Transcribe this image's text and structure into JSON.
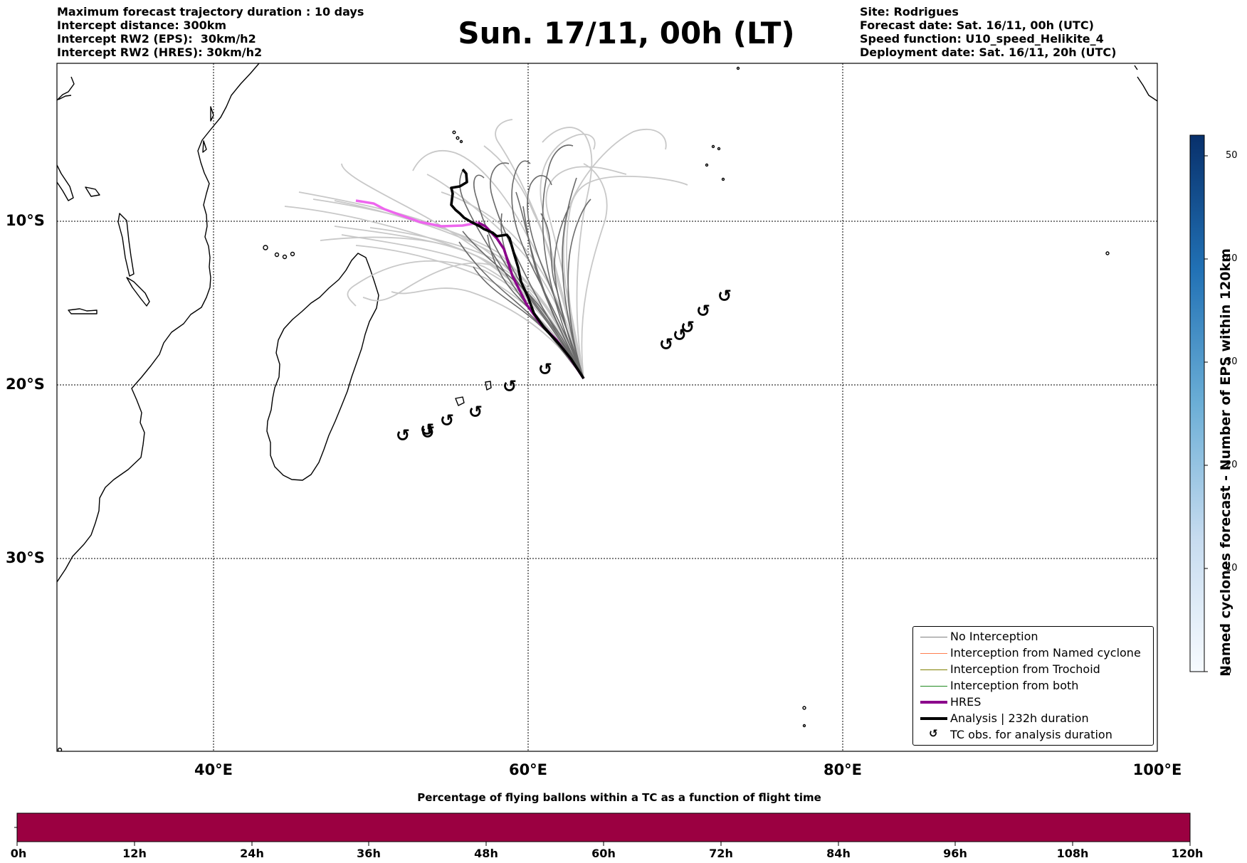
{
  "header_left": [
    "Maximum forecast trajectory duration : 10 days",
    "Intercept distance: 300km",
    "Intercept RW2 (EPS):  30km/h2",
    "Intercept RW2 (HRES): 30km/h2"
  ],
  "title": "Sun. 17/11, 00h (LT)",
  "header_right": [
    "Site: Rodrigues",
    "Forecast date: Sat. 16/11, 00h (UTC)",
    "Speed function: U10_speed_Helikite_4",
    "Deployment date: Sat. 16/11, 20h (UTC)"
  ],
  "map": {
    "lat_labels": [
      "10°S",
      "20°S",
      "30°S"
    ],
    "lon_labels": [
      "40°E",
      "60°E",
      "80°E",
      "100°E"
    ],
    "deployment_site": "Rodrigues",
    "tc_obs_symbol": "↺"
  },
  "legend": [
    {
      "label": "No Interception",
      "color": "#808080",
      "kind": "thin-line"
    },
    {
      "label": "Interception from Named cyclone",
      "color": "#ff7f50",
      "kind": "thin-line"
    },
    {
      "label": "Interception from Trochoid",
      "color": "#808000",
      "kind": "thin-line"
    },
    {
      "label": "Interception from both",
      "color": "#228b22",
      "kind": "thin-line"
    },
    {
      "label": "HRES",
      "color": "#8b008b",
      "kind": "thick-line"
    },
    {
      "label": "Analysis | 232h duration",
      "color": "#000000",
      "kind": "thick-line"
    },
    {
      "label": "TC obs. for analysis duration",
      "color": "#000000",
      "kind": "symbol"
    }
  ],
  "colorbar_right": {
    "title": "Named cyclones forecast - Number of EPS within 120km",
    "ticks": [
      "0",
      "10",
      "20",
      "30",
      "40",
      "50"
    ],
    "max": 52
  },
  "colorbar_bottom": {
    "title": "Percentage of flying ballons within a TC as a function of flight time",
    "ticks": [
      "0h",
      "12h",
      "24h",
      "36h",
      "48h",
      "60h",
      "72h",
      "84h",
      "96h",
      "108h",
      "120h"
    ],
    "color": "#9b0041"
  }
}
